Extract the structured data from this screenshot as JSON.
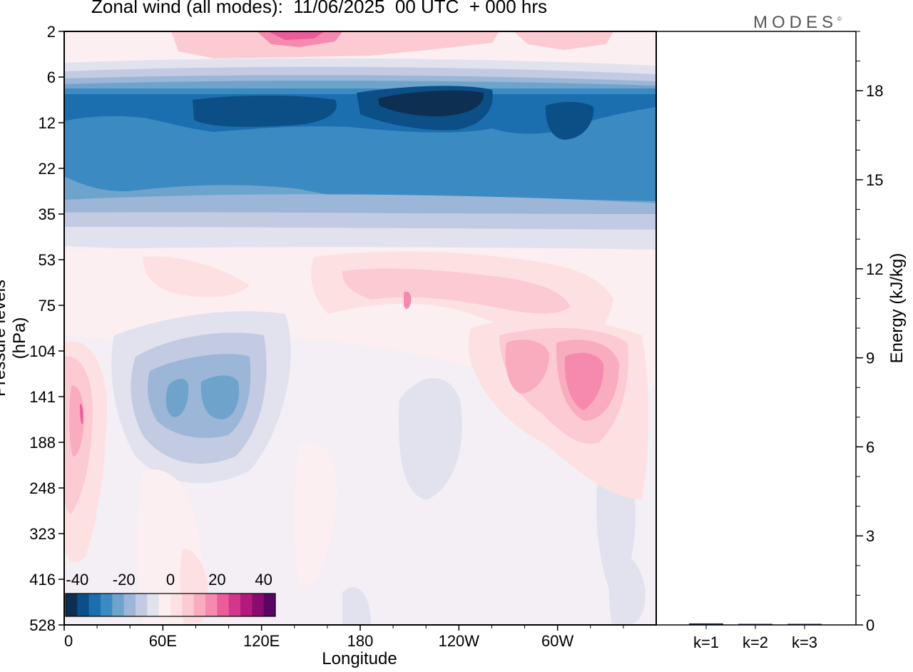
{
  "title": "Zonal wind (all modes):  11/06/2025  00 UTC  + 000 hrs",
  "brand": "MODES",
  "brand_mark": "©",
  "chart_data": [
    {
      "type": "heatmap",
      "xlabel": "Longitude",
      "ylabel": "Pressure levels (hPa)",
      "x_ticks": [
        "0",
        "60E",
        "120E",
        "180",
        "120W",
        "60W"
      ],
      "y_levels": [
        "2",
        "6",
        "12",
        "22",
        "35",
        "53",
        "75",
        "104",
        "141",
        "188",
        "248",
        "323",
        "416",
        "528"
      ],
      "colorbar": {
        "tick_labels": [
          "-40",
          "-20",
          "0",
          "20",
          "40"
        ],
        "min": -45,
        "max": 45,
        "step": 5,
        "colors": [
          "#0d2f52",
          "#0b4f86",
          "#1b6fae",
          "#3b8bc2",
          "#6ea4cc",
          "#9bb6d6",
          "#c3cbe2",
          "#e2e2ef",
          "#fbeff1",
          "#fde1e2",
          "#fccbd1",
          "#f9acbe",
          "#f58aae",
          "#ec5c9a",
          "#d3378c",
          "#b21a7d",
          "#8a0b70",
          "#5a0464"
        ]
      },
      "bands_by_level_ms": [
        {
          "level": "2",
          "typical": 8,
          "max": 25
        },
        {
          "level": "6",
          "typical": -5
        },
        {
          "level": "12",
          "typical": -35,
          "min": -43
        },
        {
          "level": "22",
          "typical": -28
        },
        {
          "level": "35",
          "typical": -12
        },
        {
          "level": "53",
          "typical": 3
        },
        {
          "level": "75",
          "typical": 6
        },
        {
          "level": "104",
          "typical": 3
        },
        {
          "level": "141",
          "typical": 2,
          "min": -22,
          "max": 18
        },
        {
          "level": "188",
          "typical": 2
        },
        {
          "level": "248",
          "typical": 1
        },
        {
          "level": "323",
          "typical": 1
        },
        {
          "level": "416",
          "typical": 0
        },
        {
          "level": "528",
          "typical": 0
        }
      ]
    },
    {
      "type": "bar",
      "categories": [
        "k=1",
        "k=2",
        "k=3"
      ],
      "values": [
        0.05,
        0.03,
        0.02
      ],
      "ylabel": "Energy (kJ/kg)",
      "yticks": [
        0,
        3,
        6,
        9,
        12,
        15,
        18
      ],
      "ylim": [
        0,
        20
      ]
    }
  ]
}
